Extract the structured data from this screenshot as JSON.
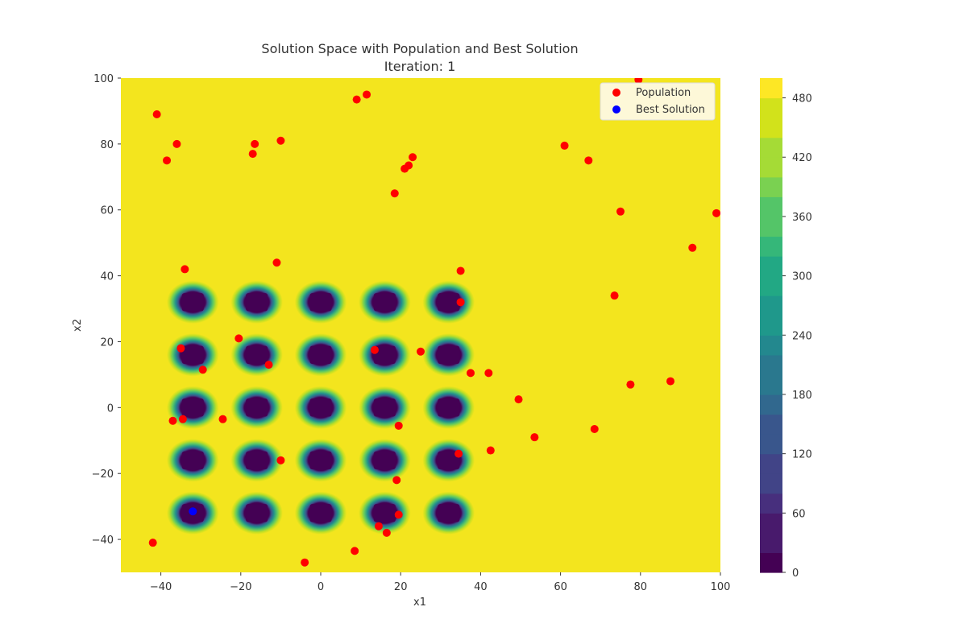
{
  "chart_data": {
    "type": "scatter",
    "title": "Solution Space with Population and Best Solution",
    "subtitle": "Iteration: 1",
    "xlabel": "x1",
    "ylabel": "x2",
    "xlim": [
      -50,
      100
    ],
    "ylim": [
      -50,
      100
    ],
    "xticks": [
      -40,
      -20,
      0,
      20,
      40,
      60,
      80,
      100
    ],
    "yticks": [
      -40,
      -20,
      0,
      20,
      40,
      60,
      80,
      100
    ],
    "xtick_labels": [
      "−40",
      "−20",
      "0",
      "20",
      "40",
      "60",
      "80",
      "100"
    ],
    "ytick_labels": [
      "−40",
      "−20",
      "0",
      "20",
      "40",
      "60",
      "80",
      "100"
    ],
    "grid": false,
    "legend_position": "top-right",
    "background_contour": {
      "description_values": "filled contour of objective function",
      "plateau_value": 500,
      "wells": {
        "x_centers": [
          -32,
          -16,
          0,
          16,
          32
        ],
        "y_centers": [
          -32,
          -16,
          0,
          16,
          32
        ],
        "min_value": 0
      },
      "colorbar": {
        "range": [
          0,
          500
        ],
        "ticks": [
          0,
          60,
          120,
          180,
          240,
          300,
          360,
          420,
          480
        ],
        "tick_labels": [
          "0",
          "60",
          "120",
          "180",
          "240",
          "300",
          "360",
          "420",
          "480"
        ],
        "colormap": "viridis"
      }
    },
    "series": [
      {
        "name": "Population",
        "color": "#ff0000",
        "points": [
          [
            -41,
            89
          ],
          [
            -36,
            80
          ],
          [
            -38.5,
            75
          ],
          [
            -16.5,
            80
          ],
          [
            -17,
            77
          ],
          [
            -10,
            81
          ],
          [
            9,
            93.5
          ],
          [
            11.5,
            95
          ],
          [
            23,
            76
          ],
          [
            22,
            73.5
          ],
          [
            21,
            72.5
          ],
          [
            18.5,
            65
          ],
          [
            61,
            79.5
          ],
          [
            67,
            75
          ],
          [
            79.5,
            99.5
          ],
          [
            75,
            59.5
          ],
          [
            99,
            59
          ],
          [
            93,
            48.5
          ],
          [
            73.5,
            34
          ],
          [
            -34,
            42
          ],
          [
            -11,
            44
          ],
          [
            35,
            41.5
          ],
          [
            35,
            32
          ],
          [
            -35,
            18
          ],
          [
            -20.5,
            21
          ],
          [
            -29.5,
            11.5
          ],
          [
            -13,
            13
          ],
          [
            13.5,
            17.5
          ],
          [
            25,
            17
          ],
          [
            37.5,
            10.5
          ],
          [
            42,
            10.5
          ],
          [
            49.5,
            2.5
          ],
          [
            77.5,
            7
          ],
          [
            87.5,
            8
          ],
          [
            -37,
            -4
          ],
          [
            -34.5,
            -3.5
          ],
          [
            -24.5,
            -3.5
          ],
          [
            19.5,
            -5.5
          ],
          [
            68.5,
            -6.5
          ],
          [
            53.5,
            -9
          ],
          [
            42.5,
            -13
          ],
          [
            34.5,
            -14
          ],
          [
            -10,
            -16
          ],
          [
            19,
            -22
          ],
          [
            19.5,
            -32.5
          ],
          [
            14.5,
            -36
          ],
          [
            16.5,
            -38
          ],
          [
            -42,
            -41
          ],
          [
            8.5,
            -43.5
          ],
          [
            -4,
            -47
          ]
        ]
      },
      {
        "name": "Best Solution",
        "color": "#0000ff",
        "points": [
          [
            -32,
            -31.5
          ]
        ]
      }
    ]
  }
}
